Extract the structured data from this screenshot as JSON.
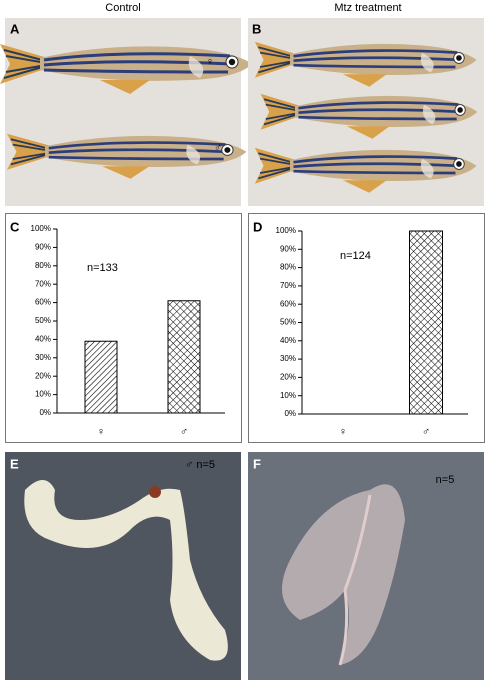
{
  "header": {
    "columns": [
      "Control",
      "Mtz treatment"
    ]
  },
  "photos": [
    {
      "panel": "A",
      "labels": [
        "♀",
        "♂"
      ]
    },
    {
      "panel": "B"
    },
    {
      "panel": "E",
      "labels": [
        "♂ n=5"
      ]
    },
    {
      "panel": "F",
      "labels": [
        "n=5"
      ]
    }
  ],
  "chart_data": [
    {
      "type": "bar",
      "panel": "C",
      "annotation": "n=133",
      "categories": [
        "♀",
        "♂"
      ],
      "values": [
        39,
        61
      ],
      "color": "#000000",
      "hatch": [
        "diagonal",
        "cross"
      ],
      "ylim": [
        0,
        100
      ],
      "yticks": [
        {
          "value": 0,
          "label": "0%"
        },
        {
          "value": 10,
          "label": "10%"
        },
        {
          "value": 20,
          "label": "20%"
        },
        {
          "value": 30,
          "label": "30%"
        },
        {
          "value": 40,
          "label": "40%"
        },
        {
          "value": 50,
          "label": "50%"
        },
        {
          "value": 60,
          "label": "60%"
        },
        {
          "value": 70,
          "label": "70%"
        },
        {
          "value": 80,
          "label": "80%"
        },
        {
          "value": 90,
          "label": "90%"
        },
        {
          "value": 100,
          "label": "100%"
        }
      ]
    },
    {
      "type": "bar",
      "panel": "D",
      "annotation": "n=124",
      "categories": [
        "♀",
        "♂"
      ],
      "values": [
        0,
        100
      ],
      "color": "#000000",
      "hatch": [
        "diagonal",
        "cross"
      ],
      "ylim": [
        0,
        100
      ],
      "yticks": [
        {
          "value": 0,
          "label": "0%"
        },
        {
          "value": 10,
          "label": "10%"
        },
        {
          "value": 20,
          "label": "20%"
        },
        {
          "value": 30,
          "label": "30%"
        },
        {
          "value": 40,
          "label": "40%"
        },
        {
          "value": 50,
          "label": "50%"
        },
        {
          "value": 60,
          "label": "60%"
        },
        {
          "value": 70,
          "label": "70%"
        },
        {
          "value": 80,
          "label": "80%"
        },
        {
          "value": 90,
          "label": "90%"
        },
        {
          "value": 100,
          "label": "100%"
        }
      ]
    }
  ]
}
